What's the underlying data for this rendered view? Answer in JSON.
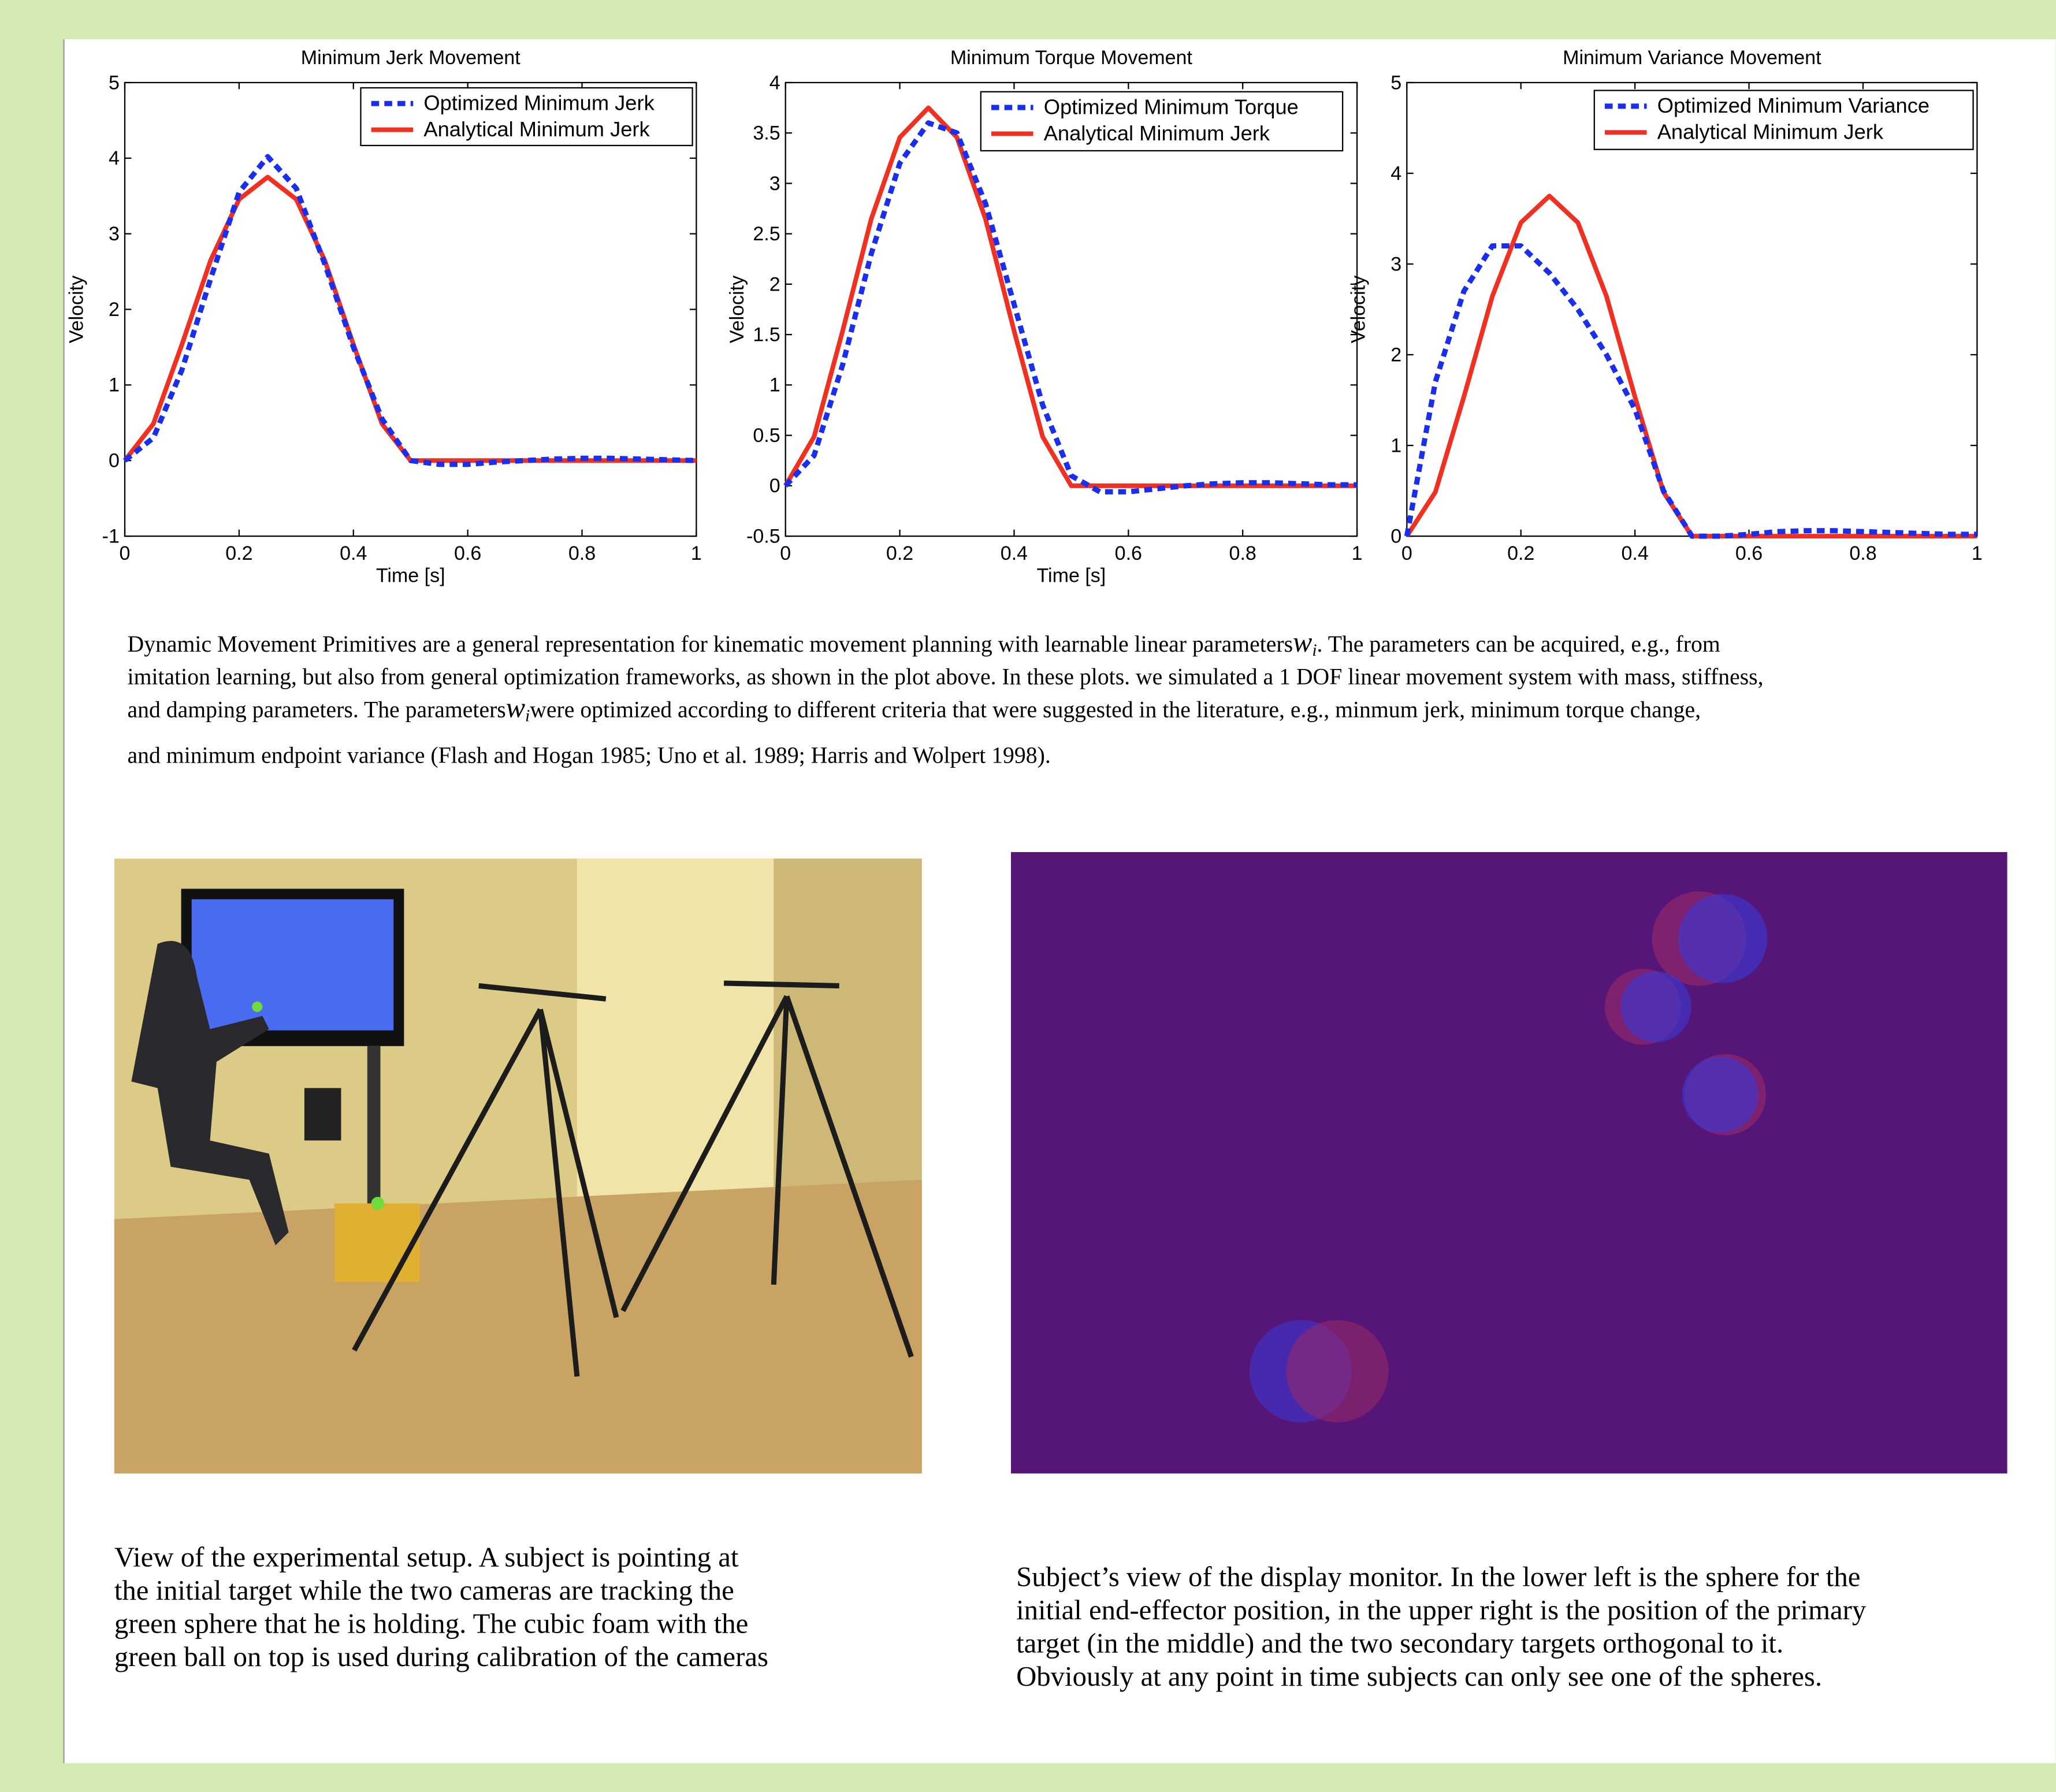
{
  "chart_data": [
    {
      "type": "line",
      "title": "Minimum Jerk Movement",
      "xlabel": "Time [s]",
      "ylabel": "Velocity",
      "x": [
        0,
        0.05,
        0.1,
        0.15,
        0.2,
        0.25,
        0.3,
        0.35,
        0.4,
        0.45,
        0.5,
        0.55,
        0.6,
        0.65,
        0.7,
        0.75,
        0.8,
        0.85,
        0.9,
        0.95,
        1
      ],
      "series": [
        {
          "name": "Optimized Minimum Jerk",
          "color": "#1a2ef0",
          "style": "dashed",
          "values": [
            0,
            0.3,
            1.2,
            2.4,
            3.55,
            4.02,
            3.6,
            2.6,
            1.5,
            0.55,
            0,
            -0.05,
            -0.05,
            -0.02,
            0,
            0.02,
            0.03,
            0.03,
            0.02,
            0.01,
            0
          ]
        },
        {
          "name": "Analytical Minimum Jerk",
          "color": "#f03020",
          "style": "solid",
          "values": [
            0,
            0.486,
            1.536,
            2.646,
            3.456,
            3.75,
            3.456,
            2.646,
            1.536,
            0.486,
            0,
            0,
            0,
            0,
            0,
            0,
            0,
            0,
            0,
            0,
            0
          ]
        }
      ],
      "xlim": [
        0,
        1
      ],
      "ylim": [
        -1,
        5
      ],
      "xticks": [
        0,
        0.2,
        0.4,
        0.6,
        0.8,
        1
      ],
      "yticks": [
        -1,
        0,
        1,
        2,
        3,
        4,
        5
      ],
      "legend": "upper right"
    },
    {
      "type": "line",
      "title": "Minimum Torque Movement",
      "xlabel": "Time [s]",
      "ylabel": "Velocity",
      "x": [
        0,
        0.05,
        0.1,
        0.15,
        0.2,
        0.25,
        0.3,
        0.35,
        0.4,
        0.45,
        0.5,
        0.55,
        0.6,
        0.65,
        0.7,
        0.75,
        0.8,
        0.85,
        0.9,
        0.95,
        1
      ],
      "series": [
        {
          "name": "Optimized Minimum Torque",
          "color": "#1a2ef0",
          "style": "dashed",
          "values": [
            0,
            0.3,
            1.2,
            2.3,
            3.2,
            3.6,
            3.5,
            2.8,
            1.8,
            0.8,
            0.1,
            -0.06,
            -0.06,
            -0.03,
            0,
            0.02,
            0.03,
            0.03,
            0.02,
            0.01,
            0.01
          ]
        },
        {
          "name": "Analytical Minimum Jerk",
          "color": "#f03020",
          "style": "solid",
          "values": [
            0,
            0.486,
            1.536,
            2.646,
            3.456,
            3.75,
            3.456,
            2.646,
            1.536,
            0.486,
            0,
            0,
            0,
            0,
            0,
            0,
            0,
            0,
            0,
            0,
            0
          ]
        }
      ],
      "xlim": [
        0,
        1
      ],
      "ylim": [
        -0.5,
        4
      ],
      "xticks": [
        0,
        0.2,
        0.4,
        0.6,
        0.8,
        1
      ],
      "yticks": [
        -0.5,
        0,
        0.5,
        1,
        1.5,
        2,
        2.5,
        3,
        3.5,
        4
      ],
      "legend": "upper right"
    },
    {
      "type": "line",
      "title": "Minimum Variance Movement",
      "ylabel": "Velocity",
      "x": [
        0,
        0.05,
        0.1,
        0.15,
        0.2,
        0.25,
        0.3,
        0.35,
        0.4,
        0.45,
        0.5,
        0.55,
        0.6,
        0.65,
        0.7,
        0.75,
        0.8,
        0.85,
        0.9,
        0.95,
        1
      ],
      "series": [
        {
          "name": "Optimized Minimum Variance",
          "color": "#1a2ef0",
          "style": "dashed",
          "values": [
            0,
            1.7,
            2.7,
            3.2,
            3.2,
            2.9,
            2.5,
            2,
            1.4,
            0.5,
            0,
            0,
            0.02,
            0.05,
            0.06,
            0.06,
            0.05,
            0.04,
            0.03,
            0.02,
            0.02
          ]
        },
        {
          "name": "Analytical Minimum Jerk",
          "color": "#f03020",
          "style": "solid",
          "values": [
            0,
            0.486,
            1.536,
            2.646,
            3.456,
            3.75,
            3.456,
            2.646,
            1.536,
            0.486,
            0,
            0,
            0,
            0,
            0,
            0,
            0,
            0,
            0,
            0,
            0
          ]
        }
      ],
      "xlim": [
        0,
        1
      ],
      "ylim": [
        0,
        5
      ],
      "xticks": [
        0,
        0.2,
        0.4,
        0.6,
        0.8,
        1
      ],
      "yticks": [
        0,
        1,
        2,
        3,
        4,
        5
      ],
      "legend": "upper right"
    }
  ],
  "paragraph": {
    "lines": [
      [
        "Dynamic Movement Primitives are a general representation for kinematic movement planning with learnable linear parameters",
        "w",
        "i",
        ".  The parameters can be acquired, e.g., from"
      ],
      [
        " imitation learning, but also from general optimization frameworks, as shown in the plot above. In these plots. we simulated a 1 DOF linear movement system with mass, stiffness,"
      ],
      [
        "and damping parameters. The parameters",
        "w",
        "i",
        "were optimized according to different criteria that were suggested in the literature, e.g., minmum jerk, minimum torque change,"
      ],
      [
        "and minimum endpoint variance  (Flash and Hogan 1985; Uno et al. 1989; Harris and Wolpert 1998)."
      ]
    ]
  },
  "captions": {
    "left": [
      "View of the experimental setup. A subject is pointing at",
      "the initial target while the two cameras are tracking the",
      "green sphere that he is holding. The cubic foam with the",
      "green ball on top is used during calibration of the cameras"
    ],
    "right": [
      "Subject’s view of the display monitor. In the lower left is the sphere for the",
      "initial end-effector position, in the upper right is the position of the primary",
      "target (in the middle) and the two secondary targets orthogonal to it.",
      "Obviously at any point in time subjects can only see one of the spheres."
    ]
  }
}
